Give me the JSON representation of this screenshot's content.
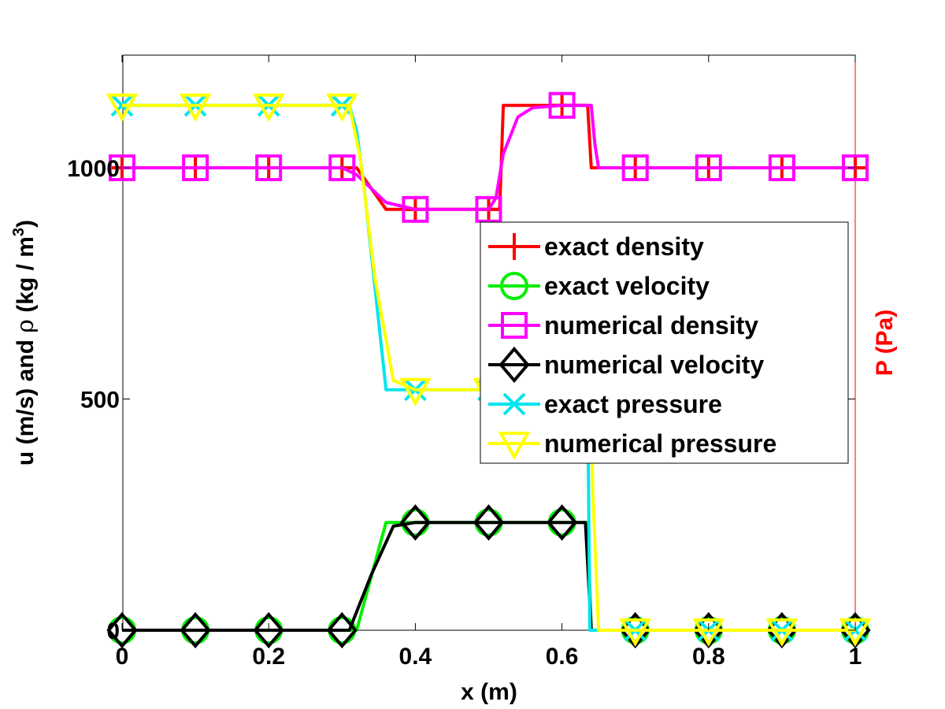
{
  "chart_data": {
    "type": "line",
    "xlabel": "x (m)",
    "ylabel_left": {
      "pre": "u (m/s) and ",
      "rho": "ρ",
      "post": " (kg / m",
      "sup": "3",
      "end": ")"
    },
    "ylabel_right": "P (Pa)",
    "xlim": [
      0,
      1
    ],
    "ylim": [
      0,
      1150
    ],
    "x_ticks": [
      0,
      0.2,
      0.4,
      0.6,
      0.8,
      1
    ],
    "x_tick_labels": [
      "0",
      "0.2",
      "0.4",
      "0.6",
      "0.8",
      "1"
    ],
    "y_ticks": [
      0,
      500,
      1000
    ],
    "y_tick_labels": [
      "0",
      "500",
      "1000"
    ],
    "grid": false,
    "legend_position": "center-right",
    "series": [
      {
        "name": "exact density",
        "color": "#ff0000",
        "marker": "plus",
        "x": [
          0,
          0.32,
          0.36,
          0.5,
          0.515,
          0.52,
          0.635,
          0.64,
          1
        ],
        "y": [
          1000,
          1000,
          910,
          910,
          910,
          1135,
          1135,
          1000,
          1000
        ],
        "marker_x": [
          0,
          0.1,
          0.2,
          0.3,
          0.4,
          0.5,
          0.6,
          0.7,
          0.8,
          0.9,
          1
        ]
      },
      {
        "name": "exact velocity",
        "color": "#00ee00",
        "marker": "circle",
        "x": [
          0,
          0.32,
          0.36,
          0.635,
          0.64,
          1
        ],
        "y": [
          0,
          0,
          233,
          233,
          0,
          0
        ],
        "marker_x": [
          0,
          0.1,
          0.2,
          0.3,
          0.4,
          0.5,
          0.6,
          0.7,
          0.8,
          0.9,
          1
        ]
      },
      {
        "name": "numerical density",
        "color": "#ff00ff",
        "marker": "square",
        "x": [
          0,
          0.3,
          0.32,
          0.36,
          0.4,
          0.5,
          0.51,
          0.52,
          0.54,
          0.56,
          0.6,
          0.64,
          0.645,
          0.65,
          1
        ],
        "y": [
          1000,
          1000,
          985,
          925,
          910,
          910,
          935,
          1030,
          1110,
          1130,
          1135,
          1135,
          1050,
          1000,
          1000
        ],
        "marker_x": [
          0,
          0.1,
          0.2,
          0.3,
          0.4,
          0.5,
          0.6,
          0.7,
          0.8,
          0.9,
          1
        ]
      },
      {
        "name": "numerical velocity",
        "color": "#000000",
        "marker": "diamond",
        "x": [
          0,
          0.31,
          0.34,
          0.37,
          0.4,
          0.63,
          0.632,
          0.64,
          1
        ],
        "y": [
          0,
          0,
          120,
          225,
          233,
          233,
          233,
          0,
          0
        ],
        "marker_x": [
          0,
          0.1,
          0.2,
          0.3,
          0.4,
          0.5,
          0.6,
          0.7,
          0.8,
          0.9,
          1
        ]
      },
      {
        "name": "exact pressure",
        "color": "#00e5ee",
        "marker": "x",
        "x": [
          0,
          0.31,
          0.32,
          0.33,
          0.36,
          0.5,
          0.635,
          0.638,
          1
        ],
        "y": [
          1135,
          1135,
          1080,
          960,
          520,
          520,
          520,
          0,
          0
        ],
        "marker_x": [
          0,
          0.1,
          0.2,
          0.3,
          0.4,
          0.5,
          0.6,
          0.7,
          0.8,
          0.9,
          1
        ]
      },
      {
        "name": "numerical pressure",
        "color": "#ffff00",
        "marker": "triangle-down",
        "x": [
          0,
          0.31,
          0.325,
          0.345,
          0.37,
          0.4,
          0.64,
          0.642,
          0.65,
          1
        ],
        "y": [
          1135,
          1135,
          1020,
          760,
          540,
          520,
          520,
          300,
          0,
          0
        ],
        "marker_x": [
          0,
          0.1,
          0.2,
          0.3,
          0.4,
          0.5,
          0.6,
          0.7,
          0.8,
          0.9,
          1
        ]
      }
    ]
  }
}
